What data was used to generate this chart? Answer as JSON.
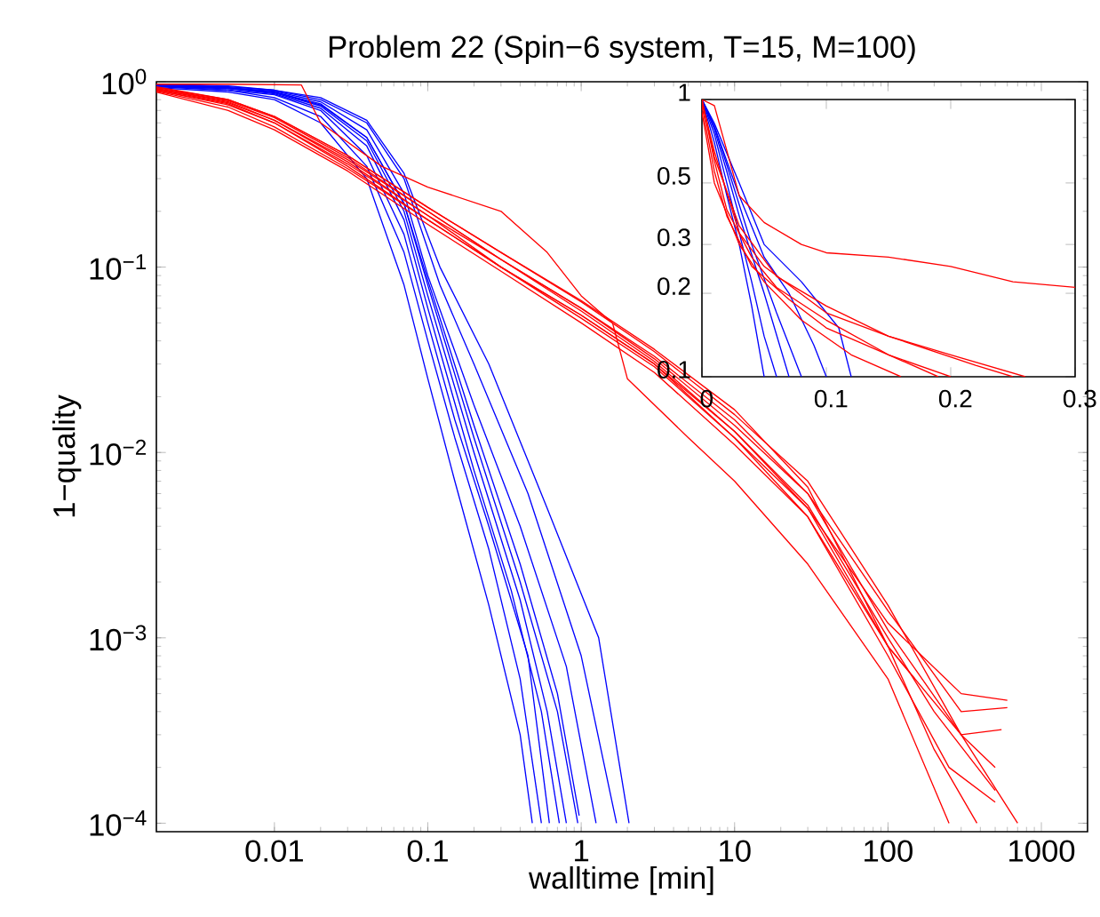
{
  "chart_data": [
    {
      "type": "line",
      "title": "Problem 22 (Spin−6 system, T=15, M=100)",
      "xlabel": "walltime [min]",
      "ylabel": "1−quality",
      "log": "xy",
      "xlim": [
        0.0017,
        2000
      ],
      "ylim": [
        9e-05,
        1
      ],
      "xticks": [
        0.01,
        0.1,
        1,
        10,
        100,
        1000
      ],
      "yticks": [
        {
          "value": 0.0001,
          "label": "10$^{−4}$"
        },
        {
          "value": 0.001,
          "label": "10$^{−3}$"
        },
        {
          "value": 0.01,
          "label": "10$^{−2}$"
        },
        {
          "value": 0.1,
          "label": "10$^{−1}$"
        },
        {
          "value": 1,
          "label": "10$^{0}$"
        }
      ],
      "series": [
        {
          "color": "#0000ff",
          "x": [
            0.0017,
            0.005,
            0.01,
            0.02,
            0.04,
            0.07,
            0.1,
            0.15,
            0.25,
            0.4,
            0.48
          ],
          "values": [
            0.93,
            0.88,
            0.8,
            0.6,
            0.3,
            0.08,
            0.025,
            0.007,
            0.0015,
            0.0003,
            0.0001
          ]
        },
        {
          "color": "#0000ff",
          "x": [
            0.0017,
            0.005,
            0.01,
            0.02,
            0.04,
            0.07,
            0.1,
            0.15,
            0.25,
            0.4,
            0.55
          ],
          "values": [
            0.95,
            0.9,
            0.82,
            0.65,
            0.35,
            0.12,
            0.04,
            0.012,
            0.003,
            0.0006,
            0.0001
          ]
        },
        {
          "color": "#0000ff",
          "x": [
            0.0017,
            0.005,
            0.01,
            0.02,
            0.04,
            0.07,
            0.1,
            0.15,
            0.25,
            0.45,
            0.62
          ],
          "values": [
            0.94,
            0.9,
            0.85,
            0.7,
            0.4,
            0.15,
            0.05,
            0.015,
            0.004,
            0.0008,
            0.0001
          ]
        },
        {
          "color": "#0000ff",
          "x": [
            0.0017,
            0.005,
            0.01,
            0.02,
            0.04,
            0.07,
            0.1,
            0.2,
            0.35,
            0.55,
            0.72
          ],
          "values": [
            0.95,
            0.92,
            0.86,
            0.72,
            0.45,
            0.18,
            0.06,
            0.008,
            0.0018,
            0.0004,
            0.0001
          ]
        },
        {
          "color": "#0000ff",
          "x": [
            0.0017,
            0.005,
            0.01,
            0.02,
            0.04,
            0.07,
            0.1,
            0.2,
            0.4,
            0.6,
            0.8
          ],
          "values": [
            0.96,
            0.92,
            0.87,
            0.74,
            0.48,
            0.2,
            0.07,
            0.01,
            0.0016,
            0.0004,
            0.0001
          ]
        },
        {
          "color": "#0000ff",
          "x": [
            0.0017,
            0.005,
            0.01,
            0.02,
            0.04,
            0.07,
            0.1,
            0.2,
            0.4,
            0.7,
            0.95
          ],
          "values": [
            0.95,
            0.92,
            0.88,
            0.76,
            0.5,
            0.22,
            0.08,
            0.012,
            0.002,
            0.0004,
            0.0001
          ]
        },
        {
          "color": "#0000ff",
          "x": [
            0.002,
            0.005,
            0.01,
            0.02,
            0.04,
            0.07,
            0.1,
            0.2,
            0.4,
            0.7,
            0.97
          ],
          "values": [
            0.96,
            0.93,
            0.88,
            0.75,
            0.5,
            0.22,
            0.085,
            0.014,
            0.0025,
            0.0005,
            0.00011
          ]
        },
        {
          "color": "#0000ff",
          "x": [
            0.0017,
            0.005,
            0.01,
            0.02,
            0.04,
            0.07,
            0.1,
            0.2,
            0.4,
            0.8,
            1.25
          ],
          "values": [
            0.96,
            0.93,
            0.89,
            0.78,
            0.55,
            0.25,
            0.09,
            0.018,
            0.004,
            0.0007,
            0.0001
          ]
        },
        {
          "color": "#0000ff",
          "x": [
            0.0017,
            0.005,
            0.01,
            0.02,
            0.04,
            0.07,
            0.12,
            0.2,
            0.45,
            1.0,
            1.7
          ],
          "values": [
            0.97,
            0.94,
            0.9,
            0.8,
            0.6,
            0.3,
            0.08,
            0.03,
            0.006,
            0.0008,
            0.0001
          ]
        },
        {
          "color": "#0000ff",
          "x": [
            0.0017,
            0.005,
            0.01,
            0.02,
            0.04,
            0.07,
            0.12,
            0.25,
            0.6,
            1.3,
            2.05
          ],
          "values": [
            0.97,
            0.95,
            0.9,
            0.82,
            0.62,
            0.32,
            0.1,
            0.03,
            0.005,
            0.001,
            0.0001
          ]
        },
        {
          "color": "#ff0000",
          "x": [
            0.0017,
            0.005,
            0.015,
            0.02,
            0.05,
            0.1,
            0.3,
            0.6,
            1,
            1.6,
            2,
            5,
            10,
            30,
            100,
            250
          ],
          "values": [
            0.97,
            0.97,
            0.96,
            0.6,
            0.35,
            0.27,
            0.2,
            0.12,
            0.07,
            0.05,
            0.025,
            0.012,
            0.007,
            0.0025,
            0.0006,
            0.0001
          ]
        },
        {
          "color": "#ff0000",
          "x": [
            0.0017,
            0.005,
            0.01,
            0.03,
            0.1,
            0.3,
            1,
            3,
            10,
            30,
            100,
            300,
            600
          ],
          "values": [
            0.9,
            0.75,
            0.6,
            0.35,
            0.18,
            0.1,
            0.055,
            0.03,
            0.013,
            0.005,
            0.0012,
            0.0005,
            0.00046
          ]
        },
        {
          "color": "#ff0000",
          "x": [
            0.0017,
            0.005,
            0.01,
            0.03,
            0.1,
            0.3,
            1,
            3,
            10,
            30,
            100,
            300,
            600
          ],
          "values": [
            0.92,
            0.78,
            0.62,
            0.38,
            0.2,
            0.11,
            0.06,
            0.032,
            0.014,
            0.006,
            0.0014,
            0.0004,
            0.00042
          ]
        },
        {
          "color": "#ff0000",
          "x": [
            0.0017,
            0.005,
            0.01,
            0.03,
            0.1,
            0.3,
            1,
            3,
            10,
            30,
            100,
            300,
            550
          ],
          "values": [
            0.88,
            0.7,
            0.55,
            0.33,
            0.17,
            0.095,
            0.05,
            0.027,
            0.011,
            0.0045,
            0.0009,
            0.0003,
            0.00032
          ]
        },
        {
          "color": "#ff0000",
          "x": [
            0.0017,
            0.005,
            0.01,
            0.03,
            0.1,
            0.3,
            1,
            3,
            10,
            30,
            100,
            300,
            500
          ],
          "values": [
            0.93,
            0.8,
            0.65,
            0.4,
            0.21,
            0.12,
            0.065,
            0.035,
            0.016,
            0.007,
            0.0015,
            0.0003,
            0.0002
          ]
        },
        {
          "color": "#ff0000",
          "x": [
            0.0017,
            0.005,
            0.01,
            0.03,
            0.1,
            0.3,
            1,
            3,
            10,
            30,
            100,
            250,
            500
          ],
          "values": [
            0.9,
            0.76,
            0.6,
            0.36,
            0.19,
            0.1,
            0.055,
            0.03,
            0.012,
            0.0045,
            0.0008,
            0.0002,
            0.00013
          ]
        },
        {
          "color": "#ff0000",
          "x": [
            0.0017,
            0.005,
            0.01,
            0.03,
            0.1,
            0.3,
            1,
            3,
            10,
            30,
            100,
            200,
            500
          ],
          "values": [
            0.91,
            0.77,
            0.62,
            0.37,
            0.19,
            0.11,
            0.058,
            0.031,
            0.013,
            0.0052,
            0.001,
            0.0004,
            0.00015
          ]
        },
        {
          "color": "#ff0000",
          "x": [
            0.0017,
            0.005,
            0.01,
            0.03,
            0.1,
            0.3,
            1,
            3,
            10,
            30,
            100,
            300,
            700
          ],
          "values": [
            0.92,
            0.79,
            0.64,
            0.39,
            0.2,
            0.11,
            0.06,
            0.033,
            0.015,
            0.006,
            0.0011,
            0.0003,
            0.0001
          ]
        },
        {
          "color": "#ff0000",
          "x": [
            0.0017,
            0.005,
            0.01,
            0.03,
            0.1,
            0.3,
            1,
            3,
            10,
            30,
            100,
            200,
            380
          ],
          "values": [
            0.89,
            0.73,
            0.57,
            0.34,
            0.18,
            0.1,
            0.053,
            0.029,
            0.012,
            0.005,
            0.0009,
            0.00025,
            0.0001
          ]
        },
        {
          "color": "#ff0000",
          "x": [
            0.0017,
            0.005,
            0.01,
            0.03,
            0.1,
            0.3,
            1,
            3,
            10,
            30,
            100,
            150
          ],
          "values": [
            0.94,
            0.8,
            0.65,
            0.4,
            0.21,
            0.12,
            0.066,
            0.036,
            0.017,
            0.0065,
            0.0009,
            0.0006
          ]
        }
      ]
    },
    {
      "type": "line",
      "log": "y",
      "xlim": [
        0,
        0.3
      ],
      "ylim": [
        0.1,
        1
      ],
      "xticks": [
        0,
        0.1,
        0.2,
        0.3
      ],
      "yticks": [
        0.1,
        0.2,
        0.3,
        0.5,
        1
      ],
      "series": [
        {
          "color": "#0000ff",
          "x": [
            0,
            0.01,
            0.02,
            0.03,
            0.04,
            0.05
          ],
          "values": [
            1,
            0.7,
            0.45,
            0.3,
            0.18,
            0.1
          ]
        },
        {
          "color": "#0000ff",
          "x": [
            0,
            0.01,
            0.02,
            0.03,
            0.04,
            0.05,
            0.06
          ],
          "values": [
            1,
            0.75,
            0.5,
            0.33,
            0.22,
            0.14,
            0.1
          ]
        },
        {
          "color": "#0000ff",
          "x": [
            0,
            0.01,
            0.02,
            0.03,
            0.05,
            0.07
          ],
          "values": [
            1,
            0.78,
            0.55,
            0.38,
            0.2,
            0.1
          ]
        },
        {
          "color": "#0000ff",
          "x": [
            0,
            0.01,
            0.02,
            0.04,
            0.06,
            0.08
          ],
          "values": [
            1,
            0.8,
            0.58,
            0.3,
            0.17,
            0.1
          ]
        },
        {
          "color": "#0000ff",
          "x": [
            0,
            0.01,
            0.03,
            0.05,
            0.07,
            0.09,
            0.1
          ],
          "values": [
            1,
            0.8,
            0.45,
            0.27,
            0.2,
            0.13,
            0.1
          ]
        },
        {
          "color": "#0000ff",
          "x": [
            0,
            0.01,
            0.03,
            0.05,
            0.08,
            0.11,
            0.12
          ],
          "values": [
            1,
            0.82,
            0.5,
            0.3,
            0.22,
            0.15,
            0.1
          ]
        },
        {
          "color": "#ff0000",
          "x": [
            0,
            0.01,
            0.03,
            0.05,
            0.08,
            0.1,
            0.15,
            0.2,
            0.25,
            0.3
          ],
          "values": [
            1,
            0.95,
            0.45,
            0.36,
            0.3,
            0.28,
            0.27,
            0.25,
            0.22,
            0.21
          ]
        },
        {
          "color": "#ff0000",
          "x": [
            0,
            0.01,
            0.02,
            0.04,
            0.06,
            0.1,
            0.15,
            0.2
          ],
          "values": [
            1,
            0.6,
            0.4,
            0.27,
            0.21,
            0.16,
            0.12,
            0.1
          ]
        },
        {
          "color": "#ff0000",
          "x": [
            0,
            0.01,
            0.02,
            0.04,
            0.07,
            0.1,
            0.15,
            0.19
          ],
          "values": [
            0.95,
            0.55,
            0.38,
            0.25,
            0.19,
            0.15,
            0.12,
            0.1
          ]
        },
        {
          "color": "#ff0000",
          "x": [
            0,
            0.01,
            0.03,
            0.05,
            0.1,
            0.15,
            0.2,
            0.26
          ],
          "values": [
            0.98,
            0.65,
            0.33,
            0.25,
            0.17,
            0.14,
            0.12,
            0.1
          ]
        },
        {
          "color": "#ff0000",
          "x": [
            0,
            0.01,
            0.03,
            0.05,
            0.08,
            0.12,
            0.16
          ],
          "values": [
            0.9,
            0.5,
            0.3,
            0.22,
            0.16,
            0.12,
            0.1
          ]
        },
        {
          "color": "#ff0000",
          "x": [
            0,
            0.01,
            0.03,
            0.06,
            0.1,
            0.15,
            0.22,
            0.25
          ],
          "values": [
            1,
            0.62,
            0.35,
            0.23,
            0.18,
            0.14,
            0.11,
            0.1
          ]
        }
      ]
    }
  ]
}
